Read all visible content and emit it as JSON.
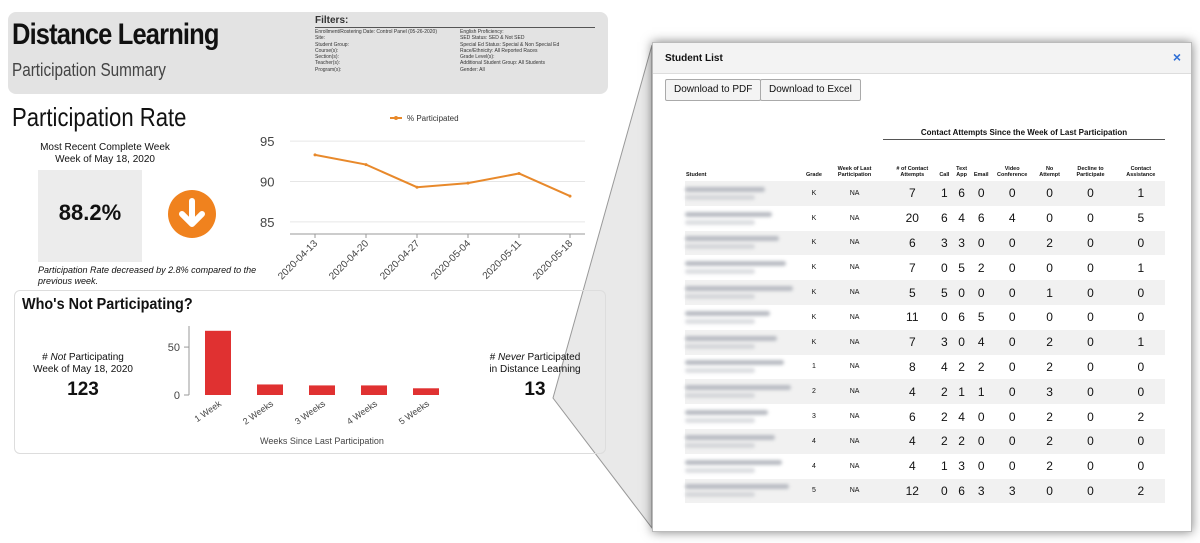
{
  "header": {
    "title": "Distance Learning",
    "subtitle": "Participation Summary"
  },
  "filters": {
    "label": "Filters:",
    "left": [
      "Enrollment/Rostering Date: Control Panel (05-26-2020)",
      "Site:",
      "Student Group:",
      "Course(s):",
      "Section(s):",
      "Teacher(s):",
      "Program(s):"
    ],
    "right": [
      "English Proficiency:",
      "SED Status: SED & Not SED",
      "Special Ed Status: Special & Non Special Ed",
      "Race/Ethnicity: All Reported Races",
      "Grade Level(s):",
      "Additional Student Group: All Students",
      "Gender: All"
    ]
  },
  "participation": {
    "title": "Participation Rate",
    "week_label": "Most Recent Complete Week",
    "week": "Week of May 18, 2020",
    "rate": "88.2%",
    "note": "Participation Rate decreased by 2.8% compared to the previous week.",
    "chart_data": {
      "type": "line",
      "x": [
        "2020-04-13",
        "2020-04-20",
        "2020-04-27",
        "2020-05-04",
        "2020-05-11",
        "2020-05-18"
      ],
      "series": [
        {
          "name": "% Participated",
          "color": "#e8892b",
          "values": [
            93.3,
            92.1,
            89.3,
            89.8,
            91.0,
            88.2
          ]
        }
      ],
      "ylim": [
        84,
        97
      ],
      "yticks": [
        85,
        90,
        95
      ],
      "grid": true
    }
  },
  "not_participating": {
    "title": "Who's Not Participating?",
    "left_prefix": "#",
    "left_emphasis": "Not",
    "left_suffix": "Participating",
    "left_week": "Week of May 18, 2020",
    "left_value": "123",
    "right_prefix": "#",
    "right_emphasis": "Never",
    "right_suffix": "Participated",
    "right_line2": "in Distance Learning",
    "right_value": "13",
    "chart_data": {
      "type": "bar",
      "categories": [
        "1 Week",
        "2 Weeks",
        "3 Weeks",
        "4 Weeks",
        "5 Weeks"
      ],
      "values": [
        67,
        11,
        10,
        10,
        7
      ],
      "color": "#e03131",
      "ylim": [
        0,
        72
      ],
      "yticks": [
        0,
        50
      ],
      "x_label": "Weeks Since Last Participation"
    }
  },
  "modal": {
    "title": "Student List",
    "close": "×",
    "buttons": [
      "Download to PDF",
      "Download to Excel"
    ],
    "group_header": "Contact Attempts Since the Week of Last Participation",
    "columns": [
      "Student",
      "Grade",
      "Week of Last Participation",
      "# of Contact Attempts",
      "Call",
      "Text App",
      "Email",
      "Video Conference",
      "No Attempt",
      "Decline to Participate",
      "Contact Assistance"
    ],
    "rows": [
      [
        "K",
        "NA",
        "7",
        "1",
        "6",
        "0",
        "0",
        "0",
        "0",
        "1"
      ],
      [
        "K",
        "NA",
        "20",
        "6",
        "4",
        "6",
        "4",
        "0",
        "0",
        "5"
      ],
      [
        "K",
        "NA",
        "6",
        "3",
        "3",
        "0",
        "0",
        "2",
        "0",
        "0"
      ],
      [
        "K",
        "NA",
        "7",
        "0",
        "5",
        "2",
        "0",
        "0",
        "0",
        "1"
      ],
      [
        "K",
        "NA",
        "5",
        "5",
        "0",
        "0",
        "0",
        "1",
        "0",
        "0"
      ],
      [
        "K",
        "NA",
        "11",
        "0",
        "6",
        "5",
        "0",
        "0",
        "0",
        "0"
      ],
      [
        "K",
        "NA",
        "7",
        "3",
        "0",
        "4",
        "0",
        "2",
        "0",
        "1"
      ],
      [
        "1",
        "NA",
        "8",
        "4",
        "2",
        "2",
        "0",
        "2",
        "0",
        "0"
      ],
      [
        "2",
        "NA",
        "4",
        "2",
        "1",
        "1",
        "0",
        "3",
        "0",
        "0"
      ],
      [
        "3",
        "NA",
        "6",
        "2",
        "4",
        "0",
        "0",
        "2",
        "0",
        "2"
      ],
      [
        "4",
        "NA",
        "4",
        "2",
        "2",
        "0",
        "0",
        "2",
        "0",
        "0"
      ],
      [
        "4",
        "NA",
        "4",
        "1",
        "3",
        "0",
        "0",
        "2",
        "0",
        "0"
      ],
      [
        "5",
        "NA",
        "12",
        "0",
        "6",
        "3",
        "3",
        "0",
        "0",
        "2"
      ]
    ]
  }
}
